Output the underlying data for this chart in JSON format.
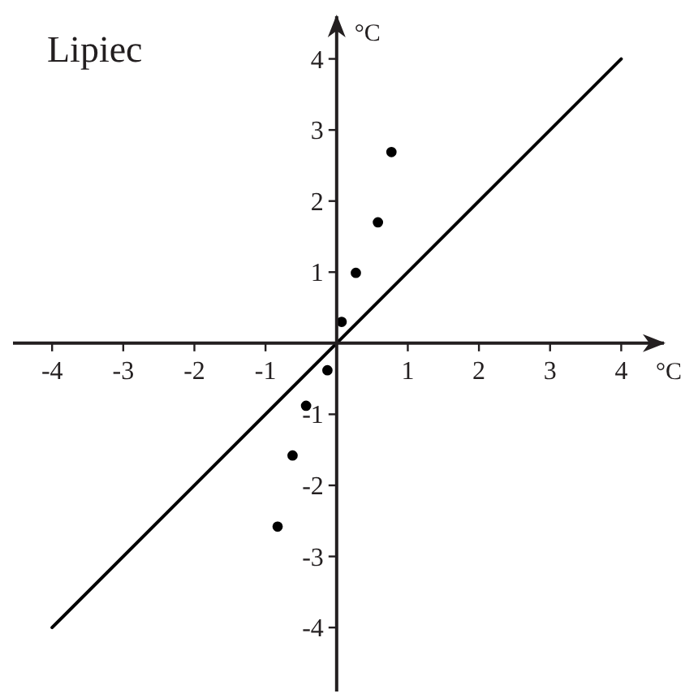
{
  "chart_data": {
    "type": "scatter",
    "title": "Lipiec",
    "xlabel": "°C",
    "ylabel": "°C",
    "xlim": [
      -4.55,
      4.6
    ],
    "ylim": [
      -4.9,
      4.6
    ],
    "xticks": [
      -4,
      -3,
      -2,
      -1,
      1,
      2,
      3,
      4
    ],
    "yticks": [
      -4,
      -3,
      -2,
      -1,
      1,
      2,
      3,
      4
    ],
    "series": [
      {
        "marker": "circle",
        "color": "#000000",
        "x": [
          -0.83,
          -0.62,
          -0.43,
          -0.13,
          0.07,
          0.27,
          0.58,
          0.77
        ],
        "values": [
          -2.58,
          -1.58,
          -0.88,
          -0.38,
          0.3,
          0.99,
          1.7,
          2.69
        ]
      },
      {
        "type": "line",
        "color": "#000000",
        "x": [
          -4,
          4
        ],
        "values": [
          -4,
          4
        ]
      }
    ]
  }
}
